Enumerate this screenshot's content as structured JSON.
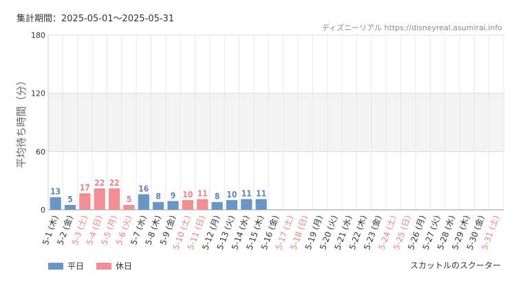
{
  "header": {
    "period": "集計期間：2025-05-01～2025-05-31",
    "credit": "ディズニーリアル https://disneyreal.asumirai.info"
  },
  "footer": {
    "attraction": "スカットルのスクーター"
  },
  "legend": [
    {
      "label": "平日",
      "color": "#6b96c3"
    },
    {
      "label": "休日",
      "color": "#f28e95"
    }
  ],
  "colors": {
    "weekday": "#6b96c3",
    "weekday_label": "#5b86b5",
    "holiday": "#f28e95",
    "holiday_label": "#f07f87",
    "band": "#f3f3f3",
    "grid": "#e8e8e8"
  },
  "chart_data": {
    "type": "bar",
    "title": "",
    "xlabel": "",
    "ylabel": "平均待ち時間（分）",
    "ylim": [
      0,
      180
    ],
    "yticks": [
      0,
      60,
      120,
      180
    ],
    "grid": true,
    "shaded_band": [
      60,
      120
    ],
    "legend_position": "bottom-left",
    "categories": [
      "5-1 (木)",
      "5-2 (金)",
      "5-3 (土)",
      "5-4 (日)",
      "5-5 (月)",
      "5-6 (火)",
      "5-7 (水)",
      "5-8 (木)",
      "5-9 (金)",
      "5-10 (土)",
      "5-11 (日)",
      "5-12 (月)",
      "5-13 (火)",
      "5-14 (水)",
      "5-15 (木)",
      "5-16 (金)",
      "5-17 (土)",
      "5-18 (日)",
      "5-19 (月)",
      "5-20 (火)",
      "5-21 (水)",
      "5-22 (木)",
      "5-23 (金)",
      "5-24 (土)",
      "5-25 (日)",
      "5-26 (月)",
      "5-27 (火)",
      "5-28 (水)",
      "5-29 (木)",
      "5-30 (金)",
      "5-31 (土)"
    ],
    "values": [
      13,
      5,
      17,
      22,
      22,
      5,
      16,
      8,
      9,
      10,
      11,
      8,
      10,
      11,
      11,
      null,
      null,
      null,
      null,
      null,
      null,
      null,
      null,
      null,
      null,
      null,
      null,
      null,
      null,
      null,
      null
    ],
    "value_labels": [
      "13",
      "5",
      "17",
      "22",
      "22",
      "5",
      "16",
      "8",
      "9",
      "10",
      "11",
      "8",
      "10",
      "11",
      "11",
      "",
      "",
      "",
      "",
      "",
      "",
      "",
      "",
      "",
      "",
      "",
      "",
      "",
      "",
      "",
      ""
    ],
    "day_type": [
      "平日",
      "平日",
      "休日",
      "休日",
      "休日",
      "休日",
      "平日",
      "平日",
      "平日",
      "休日",
      "休日",
      "平日",
      "平日",
      "平日",
      "平日",
      "平日",
      "休日",
      "休日",
      "平日",
      "平日",
      "平日",
      "平日",
      "平日",
      "休日",
      "休日",
      "平日",
      "平日",
      "平日",
      "平日",
      "平日",
      "休日"
    ]
  }
}
